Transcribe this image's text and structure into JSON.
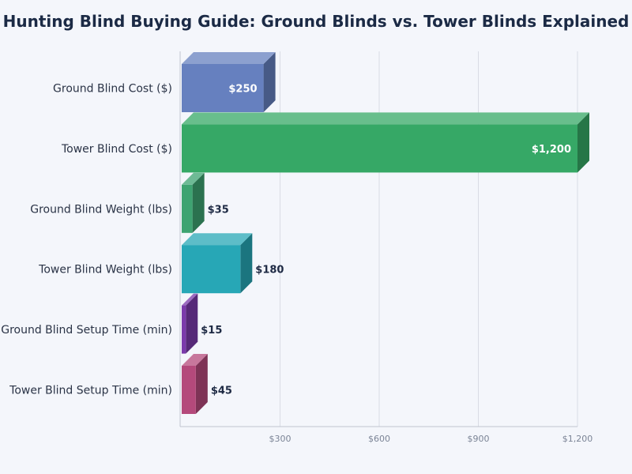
{
  "chart_data": {
    "type": "bar",
    "orientation": "horizontal",
    "title": "Hunting Blind Buying Guide: Ground Blinds vs. Tower Blinds Explained",
    "xlabel": "",
    "ylabel": "",
    "xlim": [
      0,
      1200
    ],
    "grid": true,
    "ticks": [
      {
        "value": 300,
        "label": "$300"
      },
      {
        "value": 600,
        "label": "$600"
      },
      {
        "value": 900,
        "label": "$900"
      },
      {
        "value": 1200,
        "label": "$1,200"
      }
    ],
    "bars": [
      {
        "category": "Ground Blind Cost ($)",
        "value": 250,
        "label": "$250",
        "color": "#6680bf"
      },
      {
        "category": "Tower Blind Cost ($)",
        "value": 1200,
        "label": "$1,200",
        "color": "#36a866"
      },
      {
        "category": "Ground Blind Weight (lbs)",
        "value": 35,
        "label": "$35",
        "color": "#3ea371"
      },
      {
        "category": "Tower Blind Weight (lbs)",
        "value": 180,
        "label": "$180",
        "color": "#27a7b6"
      },
      {
        "category": "Ground Blind Setup Time (min)",
        "value": 15,
        "label": "$15",
        "color": "#7b3aab"
      },
      {
        "category": "Tower Blind Setup Time (min)",
        "value": 45,
        "label": "$45",
        "color": "#b4497b"
      }
    ]
  }
}
